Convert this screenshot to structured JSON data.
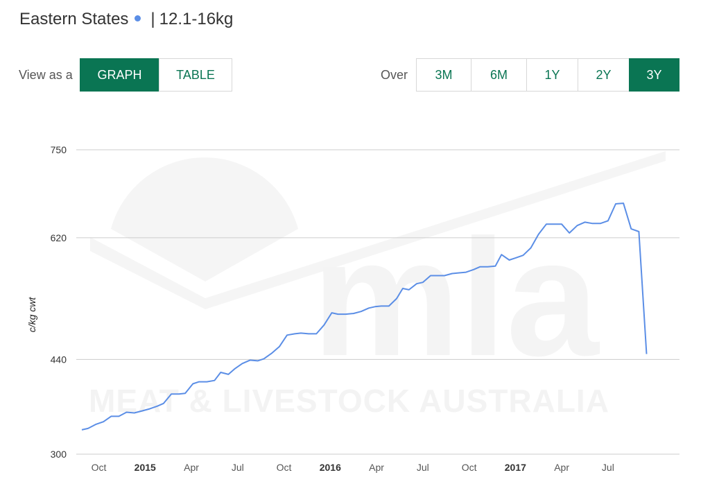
{
  "header": {
    "region": "Eastern States",
    "separator": "|",
    "category": "12.1-16kg",
    "series_color": "#5b8ee6"
  },
  "view_controls": {
    "label": "View as a",
    "options": [
      "GRAPH",
      "TABLE"
    ],
    "selected": "GRAPH"
  },
  "range_controls": {
    "label": "Over",
    "options": [
      "3M",
      "6M",
      "1Y",
      "2Y",
      "3Y"
    ],
    "selected": "3Y"
  },
  "colors": {
    "accent": "#0a7553",
    "line": "#5b8ee6",
    "grid": "#cccccc"
  },
  "watermark": {
    "logo": "mla",
    "text": "MEAT & LIVESTOCK AUSTRALIA"
  },
  "chart_data": {
    "type": "line",
    "ylabel": "c/kg cwt",
    "yticks": [
      300,
      440,
      620,
      750
    ],
    "ylim": [
      300,
      750
    ],
    "xticks": [
      {
        "label": "Oct",
        "t": 3,
        "year": false
      },
      {
        "label": "2015",
        "t": 6,
        "year": true
      },
      {
        "label": "Apr",
        "t": 9,
        "year": false
      },
      {
        "label": "Jul",
        "t": 12,
        "year": false
      },
      {
        "label": "Oct",
        "t": 15,
        "year": false
      },
      {
        "label": "2016",
        "t": 18,
        "year": true
      },
      {
        "label": "Apr",
        "t": 21,
        "year": false
      },
      {
        "label": "Jul",
        "t": 24,
        "year": false
      },
      {
        "label": "Oct",
        "t": 27,
        "year": false
      },
      {
        "label": "2017",
        "t": 30,
        "year": true
      },
      {
        "label": "Apr",
        "t": 33,
        "year": false
      },
      {
        "label": "Jul",
        "t": 36,
        "year": false
      }
    ],
    "xlim": [
      1.9,
      39.6
    ],
    "grid": true,
    "legend": "none",
    "series": [
      {
        "color": "#5b8ee6",
        "points": [
          [
            1.9,
            336
          ],
          [
            2.3,
            338
          ],
          [
            2.8,
            344
          ],
          [
            3.3,
            348
          ],
          [
            3.8,
            356
          ],
          [
            4.3,
            356
          ],
          [
            4.8,
            362
          ],
          [
            5.3,
            361
          ],
          [
            5.8,
            364
          ],
          [
            6.3,
            367
          ],
          [
            6.8,
            371
          ],
          [
            7.2,
            375
          ],
          [
            7.7,
            389
          ],
          [
            8.2,
            389
          ],
          [
            8.6,
            390
          ],
          [
            9.1,
            404
          ],
          [
            9.5,
            407
          ],
          [
            10.0,
            407
          ],
          [
            10.5,
            409
          ],
          [
            10.9,
            421
          ],
          [
            11.4,
            418
          ],
          [
            11.8,
            426
          ],
          [
            12.3,
            434
          ],
          [
            12.8,
            439
          ],
          [
            13.3,
            438
          ],
          [
            13.7,
            441
          ],
          [
            14.2,
            449
          ],
          [
            14.7,
            459
          ],
          [
            15.2,
            476
          ],
          [
            15.7,
            478
          ],
          [
            16.1,
            479
          ],
          [
            16.6,
            478
          ],
          [
            17.1,
            478
          ],
          [
            17.6,
            491
          ],
          [
            18.1,
            509
          ],
          [
            18.5,
            507
          ],
          [
            19.0,
            507
          ],
          [
            19.5,
            508
          ],
          [
            20.0,
            511
          ],
          [
            20.5,
            516
          ],
          [
            20.9,
            518
          ],
          [
            21.3,
            519
          ],
          [
            21.8,
            519
          ],
          [
            22.3,
            530
          ],
          [
            22.7,
            545
          ],
          [
            23.1,
            543
          ],
          [
            23.6,
            552
          ],
          [
            24.0,
            554
          ],
          [
            24.5,
            564
          ],
          [
            25.0,
            564
          ],
          [
            25.4,
            564
          ],
          [
            25.9,
            567
          ],
          [
            26.3,
            568
          ],
          [
            26.8,
            569
          ],
          [
            27.3,
            573
          ],
          [
            27.7,
            577
          ],
          [
            28.2,
            577
          ],
          [
            28.7,
            578
          ],
          [
            29.1,
            595
          ],
          [
            29.6,
            587
          ],
          [
            30.0,
            590
          ],
          [
            30.5,
            594
          ],
          [
            31.0,
            605
          ],
          [
            31.5,
            625
          ],
          [
            32.0,
            640
          ],
          [
            32.5,
            640
          ],
          [
            33.0,
            640
          ],
          [
            33.5,
            627
          ],
          [
            34.0,
            638
          ],
          [
            34.5,
            643
          ],
          [
            35.0,
            641
          ],
          [
            35.5,
            641
          ],
          [
            36.0,
            645
          ],
          [
            36.5,
            670
          ],
          [
            37.0,
            671
          ],
          [
            37.5,
            633
          ],
          [
            38.0,
            629
          ],
          [
            38.5,
            448
          ]
        ]
      }
    ]
  }
}
